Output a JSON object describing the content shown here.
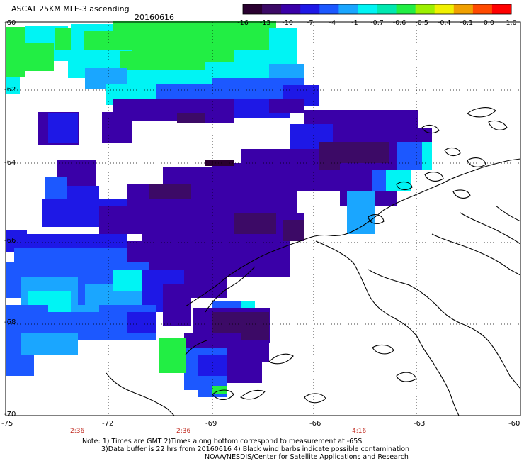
{
  "header": {
    "title": "ASCAT 25KM MLE-3 ascending",
    "date": "20160616"
  },
  "colorbar": {
    "labels": [
      "-16",
      "-13",
      "-10",
      "-7",
      "-4",
      "-1",
      "-0.7",
      "-0.6",
      "-0.5",
      "-0.4",
      "-0.1",
      "0.0",
      "1.0"
    ],
    "stops": [
      "#2a0030",
      "#3c0a66",
      "#3a00a8",
      "#1e18e6",
      "#1c58ff",
      "#1aa6ff",
      "#00f4f4",
      "#00e8b0",
      "#22ee44",
      "#9cf000",
      "#f0f000",
      "#f0a000",
      "#ff4a00",
      "#ff0000"
    ]
  },
  "axes": {
    "lon_labels": [
      "-75",
      "-72",
      "-69",
      "-66",
      "-63",
      "-60"
    ],
    "lat_labels": [
      "-60",
      "-62",
      "-64",
      "-66",
      "-68",
      "-70"
    ],
    "lon_range": [
      -75,
      -60
    ],
    "lat_range": [
      -60,
      -70
    ]
  },
  "times": [
    "2:36",
    "2:36",
    "4:16"
  ],
  "notes": {
    "line1": "Note: 1) Times are GMT 2)Times along bottom correspond to measurement at -65S",
    "line2": "3)Data buffer is 22 hrs from 20160616 4) Black wind barbs indicate possible contamination",
    "line3": "NOAA/NESDIS/Center for Satellite Applications and Research"
  }
}
